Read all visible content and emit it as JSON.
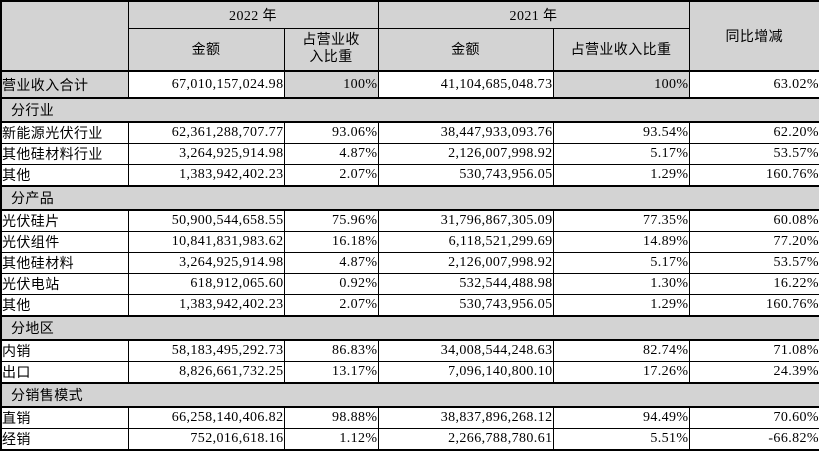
{
  "table": {
    "colors": {
      "band_bg": "#d3d3d3",
      "cell_bg": "#ffffff",
      "border": "#000000",
      "text": "#000000"
    },
    "header": {
      "corner": "",
      "year_2022": "2022 年",
      "year_2021": "2021 年",
      "yoy": "同比增减",
      "amount_2022": "金额",
      "pct_2022": "占营业收\n入比重",
      "amount_2021": "金额",
      "pct_2021": "占营业收入比重"
    },
    "rows": [
      {
        "type": "total",
        "label": "营业收入合计",
        "amount_2022": "67,010,157,024.98",
        "pct_2022": "100%",
        "amount_2021": "41,104,685,048.73",
        "pct_2021": "100%",
        "yoy": "63.02%"
      },
      {
        "type": "section",
        "label": "分行业"
      },
      {
        "type": "data",
        "label": "新能源光伏行业",
        "amount_2022": "62,361,288,707.77",
        "pct_2022": "93.06%",
        "amount_2021": "38,447,933,093.76",
        "pct_2021": "93.54%",
        "yoy": "62.20%"
      },
      {
        "type": "data",
        "label": "其他硅材料行业",
        "amount_2022": "3,264,925,914.98",
        "pct_2022": "4.87%",
        "amount_2021": "2,126,007,998.92",
        "pct_2021": "5.17%",
        "yoy": "53.57%"
      },
      {
        "type": "data",
        "label": "其他",
        "amount_2022": "1,383,942,402.23",
        "pct_2022": "2.07%",
        "amount_2021": "530,743,956.05",
        "pct_2021": "1.29%",
        "yoy": "160.76%"
      },
      {
        "type": "section",
        "label": "分产品"
      },
      {
        "type": "data",
        "label": "光伏硅片",
        "amount_2022": "50,900,544,658.55",
        "pct_2022": "75.96%",
        "amount_2021": "31,796,867,305.09",
        "pct_2021": "77.35%",
        "yoy": "60.08%"
      },
      {
        "type": "data",
        "label": "光伏组件",
        "amount_2022": "10,841,831,983.62",
        "pct_2022": "16.18%",
        "amount_2021": "6,118,521,299.69",
        "pct_2021": "14.89%",
        "yoy": "77.20%"
      },
      {
        "type": "data",
        "label": "其他硅材料",
        "amount_2022": "3,264,925,914.98",
        "pct_2022": "4.87%",
        "amount_2021": "2,126,007,998.92",
        "pct_2021": "5.17%",
        "yoy": "53.57%"
      },
      {
        "type": "data",
        "label": "光伏电站",
        "amount_2022": "618,912,065.60",
        "pct_2022": "0.92%",
        "amount_2021": "532,544,488.98",
        "pct_2021": "1.30%",
        "yoy": "16.22%"
      },
      {
        "type": "data",
        "label": "其他",
        "amount_2022": "1,383,942,402.23",
        "pct_2022": "2.07%",
        "amount_2021": "530,743,956.05",
        "pct_2021": "1.29%",
        "yoy": "160.76%"
      },
      {
        "type": "section",
        "label": "分地区"
      },
      {
        "type": "data",
        "label": "内销",
        "amount_2022": "58,183,495,292.73",
        "pct_2022": "86.83%",
        "amount_2021": "34,008,544,248.63",
        "pct_2021": "82.74%",
        "yoy": "71.08%"
      },
      {
        "type": "data",
        "label": "出口",
        "amount_2022": "8,826,661,732.25",
        "pct_2022": "13.17%",
        "amount_2021": "7,096,140,800.10",
        "pct_2021": "17.26%",
        "yoy": "24.39%"
      },
      {
        "type": "section",
        "label": "分销售模式"
      },
      {
        "type": "data",
        "label": "直销",
        "amount_2022": "66,258,140,406.82",
        "pct_2022": "98.88%",
        "amount_2021": "38,837,896,268.12",
        "pct_2021": "94.49%",
        "yoy": "70.60%"
      },
      {
        "type": "data",
        "label": "经销",
        "amount_2022": "752,016,618.16",
        "pct_2022": "1.12%",
        "amount_2021": "2,266,788,780.61",
        "pct_2021": "5.51%",
        "yoy": "-66.82%"
      }
    ]
  }
}
